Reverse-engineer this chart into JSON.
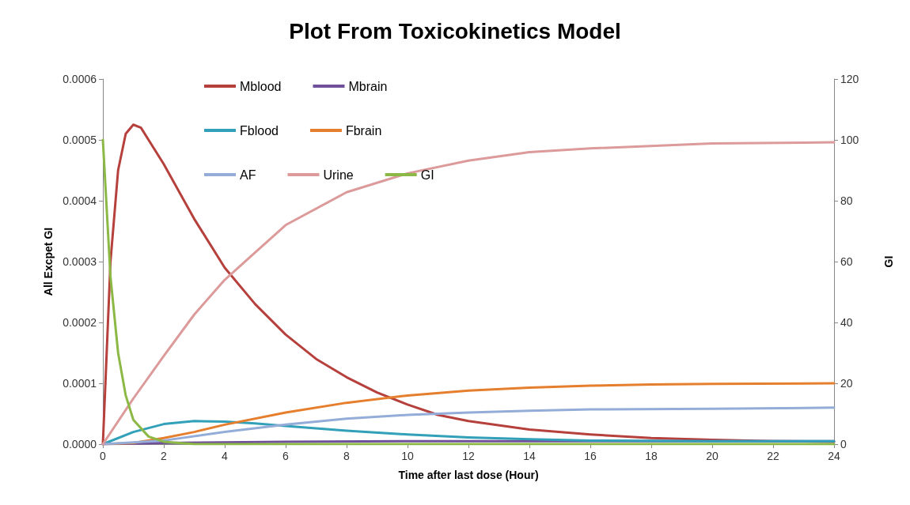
{
  "chart_data": {
    "type": "line",
    "title": "Plot From Toxicokinetics Model",
    "xlabel": "Time after last dose (Hour)",
    "ylabel": "All Excpet GI",
    "y2label": "GI",
    "xlim": [
      0,
      24
    ],
    "xticks": [
      0,
      2,
      4,
      6,
      8,
      10,
      12,
      14,
      16,
      18,
      20,
      22,
      24
    ],
    "ylim": [
      0,
      0.0006
    ],
    "yticks": [
      {
        "value": 0,
        "label": "0.0000"
      },
      {
        "value": 0.0001,
        "label": "0.0001"
      },
      {
        "value": 0.0002,
        "label": "0.0002"
      },
      {
        "value": 0.0003,
        "label": "0.0003"
      },
      {
        "value": 0.0004,
        "label": "0.0004"
      },
      {
        "value": 0.0005,
        "label": "0.0005"
      },
      {
        "value": 0.0006,
        "label": "0.0006"
      }
    ],
    "y2lim": [
      0,
      120
    ],
    "y2ticks": [
      0,
      20,
      40,
      60,
      80,
      100,
      120
    ],
    "grid": false,
    "legend": "top",
    "marker": "none",
    "line_style": "solid",
    "series": [
      {
        "name": "Mblood",
        "color": "#b5403c",
        "x": [
          0,
          0.25,
          0.5,
          0.75,
          1,
          1.25,
          1.5,
          2,
          3,
          4,
          5,
          6,
          7,
          8,
          9,
          10,
          11,
          12,
          14,
          16,
          18,
          20,
          22,
          24
        ],
        "values": [
          0,
          0.0003,
          0.00045,
          0.00051,
          0.000525,
          0.00052,
          0.0005,
          0.00046,
          0.00037,
          0.00029,
          0.00023,
          0.00018,
          0.00014,
          0.00011,
          8.5e-05,
          6.5e-05,
          4.8e-05,
          3.8e-05,
          2.4e-05,
          1.6e-05,
          1e-05,
          7e-06,
          5e-06,
          4e-06
        ]
      },
      {
        "name": "Mbrain",
        "color": "#70509a",
        "x": [
          0,
          2,
          6,
          10,
          24
        ],
        "values": [
          0,
          2e-06,
          4e-06,
          5e-06,
          5e-06
        ]
      },
      {
        "name": "Fblood",
        "color": "#31a0b8",
        "x": [
          0,
          1,
          2,
          3,
          4,
          5,
          6,
          8,
          10,
          12,
          14,
          16,
          20,
          24
        ],
        "values": [
          0,
          2e-05,
          3.3e-05,
          3.8e-05,
          3.7e-05,
          3.4e-05,
          3e-05,
          2.2e-05,
          1.6e-05,
          1.1e-05,
          8e-06,
          6e-06,
          5e-06,
          5e-06
        ]
      },
      {
        "name": "Fbrain",
        "color": "#e57e2d",
        "x": [
          0,
          1,
          2,
          3,
          4,
          6,
          8,
          10,
          12,
          14,
          16,
          18,
          20,
          24
        ],
        "values": [
          0,
          2e-06,
          1e-05,
          2e-05,
          3.2e-05,
          5.2e-05,
          6.8e-05,
          8e-05,
          8.8e-05,
          9.3e-05,
          9.6e-05,
          9.8e-05,
          9.9e-05,
          0.0001
        ]
      },
      {
        "name": "AF",
        "color": "#94acd8",
        "x": [
          0,
          2,
          4,
          6,
          8,
          10,
          12,
          14,
          16,
          20,
          24
        ],
        "values": [
          0,
          6e-06,
          2e-05,
          3.2e-05,
          4.2e-05,
          4.8e-05,
          5.2e-05,
          5.5e-05,
          5.7e-05,
          5.8e-05,
          6e-05
        ]
      },
      {
        "name": "Urine",
        "color": "#dc9a9a",
        "x": [
          0,
          1,
          2,
          3,
          4,
          5,
          6,
          8,
          10,
          12,
          14,
          16,
          20,
          24
        ],
        "values": [
          0,
          7.5e-05,
          0.000145,
          0.000213,
          0.00027,
          0.000315,
          0.00036,
          0.000414,
          0.000445,
          0.000466,
          0.00048,
          0.000486,
          0.000494,
          0.000496
        ]
      },
      {
        "name": "GI",
        "color": "#8cb845",
        "axis": "y2",
        "x": [
          0,
          0.25,
          0.5,
          0.75,
          1,
          1.5,
          2,
          3,
          24
        ],
        "values": [
          100,
          55,
          30,
          16,
          8,
          2.5,
          0.8,
          0,
          0
        ]
      }
    ]
  }
}
